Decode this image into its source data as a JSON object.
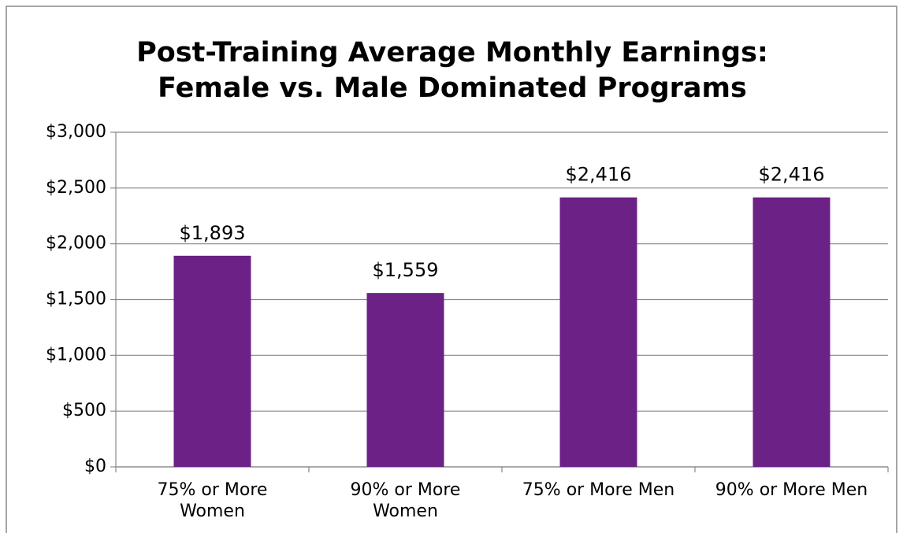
{
  "chart_data": {
    "type": "bar",
    "title": [
      "Post-Training Average Monthly Earnings:",
      "Female vs. Male Dominated Programs"
    ],
    "categories": [
      "75% or More Women",
      "90% or More Women",
      "75% or More Men",
      "90% or More Men"
    ],
    "values": [
      1893,
      1559,
      2416,
      2416
    ],
    "value_labels": [
      "$1,893",
      "$1,559",
      "$2,416",
      "$2,416"
    ],
    "color": "#6b2185",
    "ylim": [
      0,
      3000
    ],
    "yticks": [
      {
        "value": 0,
        "label": "$0"
      },
      {
        "value": 500,
        "label": "$500"
      },
      {
        "value": 1000,
        "label": "$1,000"
      },
      {
        "value": 1500,
        "label": "$1,500"
      },
      {
        "value": 2000,
        "label": "$2,000"
      },
      {
        "value": 2500,
        "label": "$2,500"
      },
      {
        "value": 3000,
        "label": "$3,000"
      }
    ],
    "grid": true
  }
}
